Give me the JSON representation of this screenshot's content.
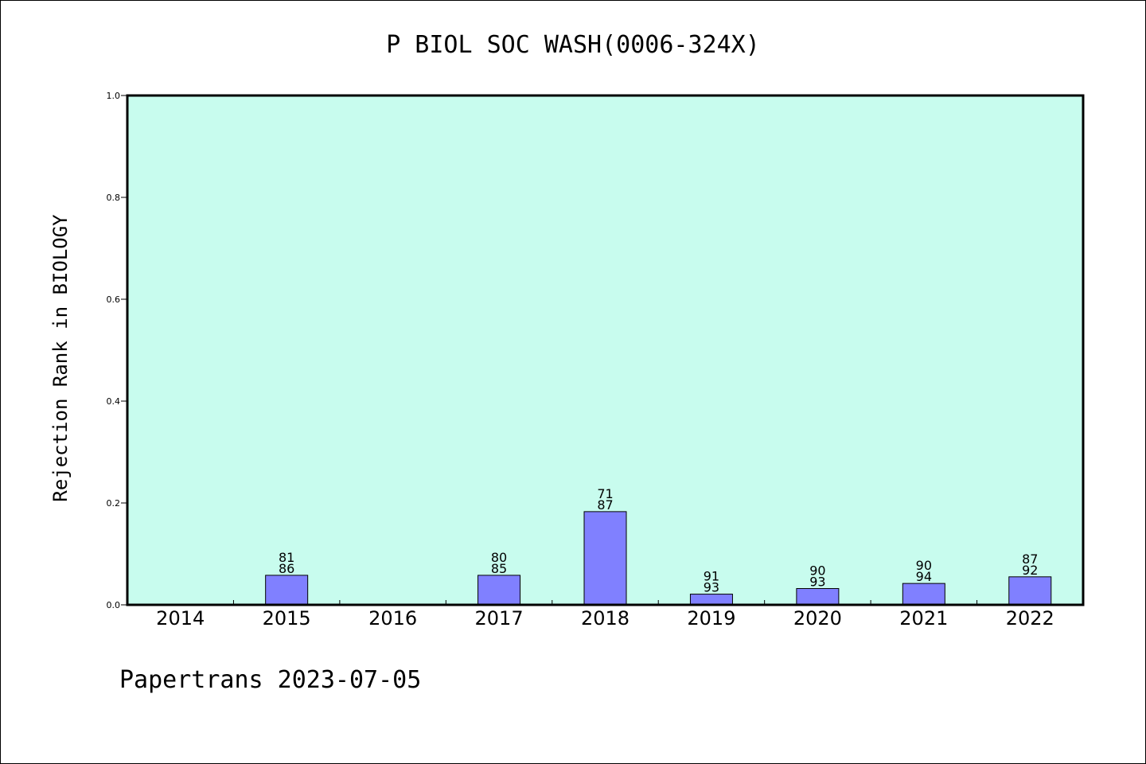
{
  "chart_data": {
    "type": "bar",
    "title": "P BIOL SOC WASH(0006-324X)",
    "ylabel": "Rejection Rank in BIOLOGY",
    "xlabel": "",
    "categories": [
      "2014",
      "2015",
      "2016",
      "2017",
      "2018",
      "2019",
      "2020",
      "2021",
      "2022"
    ],
    "values": [
      0,
      0.058,
      0,
      0.058,
      0.183,
      0.021,
      0.032,
      0.042,
      0.055
    ],
    "bar_labels_top": [
      "",
      "81",
      "",
      "80",
      "71",
      "91",
      "90",
      "90",
      "87"
    ],
    "bar_labels_bottom": [
      "",
      "86",
      "",
      "85",
      "87",
      "93",
      "93",
      "94",
      "92"
    ],
    "ylim": [
      0,
      1.0
    ],
    "yticks": [
      "0.0",
      "0.2",
      "0.4",
      "0.6",
      "0.8",
      "1.0"
    ],
    "grid": false,
    "colors": {
      "plot_background": "#c8fcee",
      "bar_fill": "#8080ff",
      "bar_edge": "#000000",
      "axis": "#000000"
    }
  },
  "footer": {
    "text": "Papertrans 2023-07-05"
  }
}
